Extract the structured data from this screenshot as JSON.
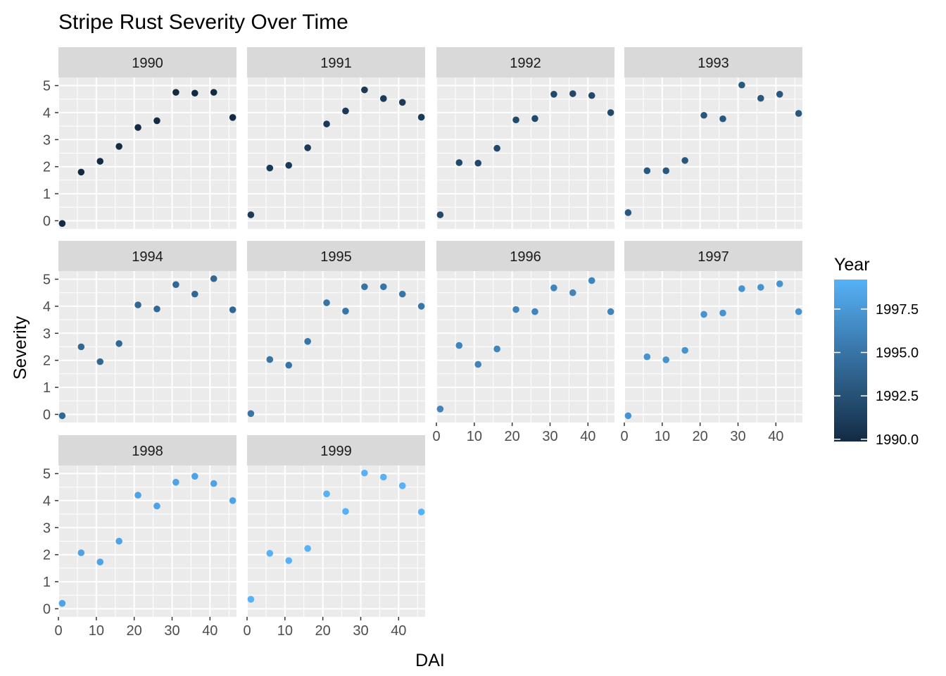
{
  "chart_data": {
    "type": "scatter",
    "title": "Stripe Rust Severity Over Time",
    "xlabel": "DAI",
    "ylabel": "Severity",
    "xlim": [
      0,
      47
    ],
    "ylim": [
      -0.3,
      5.3
    ],
    "x_ticks": [
      0,
      10,
      20,
      30,
      40
    ],
    "y_ticks": [
      0,
      1,
      2,
      3,
      4,
      5
    ],
    "grid": true,
    "facet_layout": {
      "ncol": 4,
      "nrow": 3
    },
    "legend": {
      "title": "Year",
      "position": "right",
      "type": "colorbar",
      "range": [
        1990,
        1999
      ],
      "low_color": "#132B43",
      "high_color": "#56B1F7",
      "ticks": [
        1990.0,
        1992.5,
        1995.0,
        1997.5
      ],
      "tick_labels": [
        "1990.0",
        "1992.5",
        "1995.0",
        "1997.5"
      ]
    },
    "x": [
      1,
      6,
      11,
      16,
      21,
      26,
      31,
      36,
      41,
      46
    ],
    "panels": [
      {
        "name": "1990",
        "year": 1990,
        "values": [
          -0.1,
          1.8,
          2.2,
          2.75,
          3.45,
          3.7,
          4.75,
          4.72,
          4.75,
          3.82
        ]
      },
      {
        "name": "1991",
        "year": 1991,
        "values": [
          0.22,
          1.95,
          2.05,
          2.7,
          3.58,
          4.06,
          4.84,
          4.52,
          4.38,
          3.83
        ]
      },
      {
        "name": "1992",
        "year": 1992,
        "values": [
          0.22,
          2.15,
          2.13,
          2.68,
          3.73,
          3.78,
          4.68,
          4.7,
          4.63,
          4.0
        ]
      },
      {
        "name": "1993",
        "year": 1993,
        "values": [
          0.3,
          1.85,
          1.85,
          2.23,
          3.9,
          3.77,
          5.02,
          4.53,
          4.68,
          3.97
        ]
      },
      {
        "name": "1994",
        "year": 1994,
        "values": [
          -0.05,
          2.5,
          1.95,
          2.62,
          4.05,
          3.9,
          4.8,
          4.45,
          5.02,
          3.87
        ]
      },
      {
        "name": "1995",
        "year": 1995,
        "values": [
          0.03,
          2.03,
          1.82,
          2.7,
          4.13,
          3.82,
          4.72,
          4.72,
          4.45,
          4.0
        ]
      },
      {
        "name": "1996",
        "year": 1996,
        "values": [
          0.2,
          2.55,
          1.85,
          2.42,
          3.88,
          3.8,
          4.68,
          4.5,
          4.95,
          3.8
        ]
      },
      {
        "name": "1997",
        "year": 1997,
        "values": [
          -0.05,
          2.13,
          2.02,
          2.37,
          3.7,
          3.75,
          4.65,
          4.7,
          4.83,
          3.8
        ]
      },
      {
        "name": "1998",
        "year": 1998,
        "values": [
          0.2,
          2.07,
          1.73,
          2.5,
          4.2,
          3.8,
          4.68,
          4.9,
          4.63,
          4.0
        ]
      },
      {
        "name": "1999",
        "year": 1999,
        "values": [
          0.35,
          2.05,
          1.78,
          2.23,
          4.25,
          3.6,
          5.02,
          4.87,
          4.55,
          3.58
        ]
      }
    ]
  }
}
